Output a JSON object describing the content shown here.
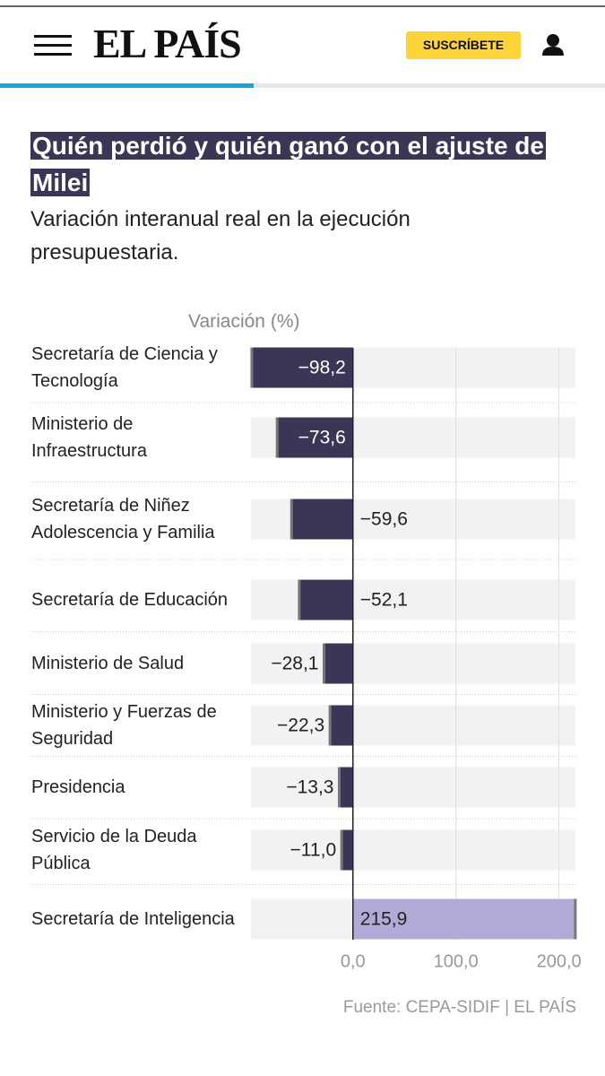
{
  "header": {
    "logo": "EL PAÍS",
    "subscribe": "SUSCRÍBETE"
  },
  "chart_data": {
    "type": "bar",
    "orientation": "horizontal",
    "title": "Quién perdió y quién ganó con el ajuste de Milei",
    "subtitle": "Variación interanual real en la ejecución presupuestaria.",
    "x_label": "Variación (%)",
    "source": "Fuente: CEPA-SIDIF | EL PAÍS",
    "categories": [
      "Secretaría de Ciencia y Tecnología",
      "Ministerio de Infraestructura",
      "Secretaría de Niñez Adolescencia y Familia",
      "Secretaría de Educación",
      "Ministerio de Salud",
      "Ministerio y Fuerzas de Seguridad",
      "Presidencia",
      "Servicio de la Deuda Pública",
      "Secretaría de Inteligencia"
    ],
    "values": [
      -98.2,
      -73.6,
      -59.6,
      -52.1,
      -28.1,
      -22.3,
      -13.3,
      -11.0,
      215.9
    ],
    "value_labels": [
      "−98,2",
      "−73,6",
      "−59,6",
      "−52,1",
      "−28,1",
      "−22,3",
      "−13,3",
      "−11,0",
      "215,9"
    ],
    "negative_color": "#3d3556",
    "positive_color": "#b3a9d6",
    "xlim": [
      -99,
      216
    ],
    "xticks": [
      {
        "value": 0,
        "label": "0,0"
      },
      {
        "value": 100,
        "label": "100,0"
      },
      {
        "value": 200,
        "label": "200,0"
      }
    ],
    "grid": true
  }
}
